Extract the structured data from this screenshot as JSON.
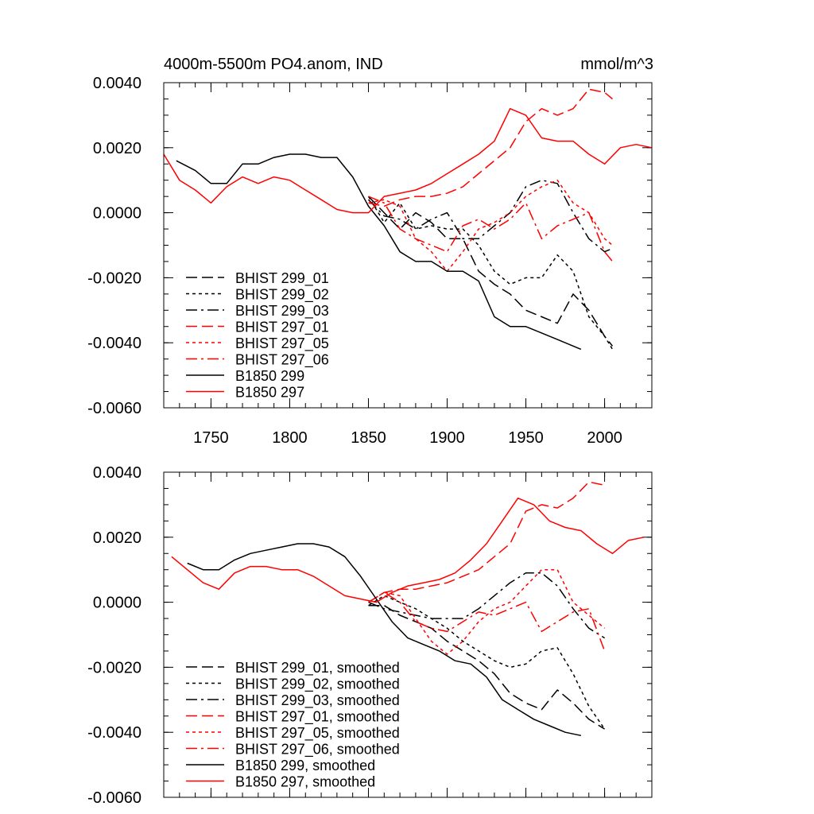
{
  "chart_data": [
    {
      "type": "line",
      "title": "4000m-5500m PO4.anom, IND",
      "units": "mmol/m^3",
      "xlim": [
        1720,
        2030
      ],
      "ylim": [
        -0.006,
        0.004
      ],
      "xticks": [
        1750,
        1800,
        1850,
        1900,
        1950,
        2000
      ],
      "xtick_labels": [
        "1750",
        "1800",
        "1850",
        "1900",
        "1950",
        "2000"
      ],
      "yticks": [
        -0.006,
        -0.004,
        -0.002,
        0.0,
        0.002,
        0.004
      ],
      "ytick_labels": [
        "-0.0060",
        "-0.0040",
        "-0.0020",
        "0.0000",
        "0.0020",
        "0.0040"
      ],
      "legend": [
        "BHIST 299_01",
        "BHIST 299_02",
        "BHIST 299_03",
        "BHIST 297_01",
        "BHIST 297_05",
        "BHIST 297_06",
        "B1850 299",
        "B1850 297"
      ],
      "series": [
        {
          "name": "BHIST 299_01",
          "color": "#000000",
          "dash": "long",
          "x": [
            1850,
            1860,
            1870,
            1880,
            1890,
            1900,
            1910,
            1920,
            1930,
            1940,
            1950,
            1960,
            1970,
            1980,
            1990,
            2000,
            2005
          ],
          "y": [
            0.0005,
            0.0,
            -0.0005,
            0.0,
            -0.0003,
            -0.0008,
            -0.0008,
            -0.0018,
            -0.0022,
            -0.0025,
            -0.003,
            -0.0032,
            -0.0034,
            -0.0025,
            -0.003,
            -0.0038,
            -0.0041
          ]
        },
        {
          "name": "BHIST 299_02",
          "color": "#000000",
          "dash": "short",
          "x": [
            1850,
            1860,
            1870,
            1880,
            1890,
            1900,
            1910,
            1920,
            1930,
            1940,
            1950,
            1960,
            1970,
            1980,
            1990,
            2000,
            2005
          ],
          "y": [
            0.0005,
            -0.0003,
            0.0003,
            -0.0005,
            -0.0004,
            -0.0005,
            -0.0005,
            -0.001,
            -0.0018,
            -0.0022,
            -0.002,
            -0.002,
            -0.0013,
            -0.0018,
            -0.0032,
            -0.0038,
            -0.0042
          ]
        },
        {
          "name": "BHIST 299_03",
          "color": "#000000",
          "dash": "dashdot",
          "x": [
            1850,
            1860,
            1870,
            1880,
            1890,
            1900,
            1910,
            1920,
            1930,
            1940,
            1950,
            1960,
            1970,
            1980,
            1990,
            2000,
            2005
          ],
          "y": [
            0.0004,
            -0.0001,
            -0.0002,
            -0.0005,
            -0.0002,
            0.0,
            -0.0008,
            -0.0008,
            -0.0004,
            0.0,
            0.0008,
            0.001,
            0.0009,
            0.0,
            -0.0008,
            -0.0012,
            -0.0011
          ]
        },
        {
          "name": "BHIST 297_01",
          "color": "#ff0000",
          "dash": "long",
          "x": [
            1850,
            1860,
            1870,
            1880,
            1890,
            1900,
            1910,
            1920,
            1930,
            1940,
            1950,
            1960,
            1970,
            1980,
            1990,
            2000,
            2005
          ],
          "y": [
            0.0003,
            0.0002,
            0.0004,
            0.0005,
            0.0005,
            0.0006,
            0.0008,
            0.0012,
            0.0016,
            0.002,
            0.0028,
            0.0032,
            0.003,
            0.0032,
            0.0038,
            0.0037,
            0.0035
          ]
        },
        {
          "name": "BHIST 297_05",
          "color": "#ff0000",
          "dash": "short",
          "x": [
            1850,
            1860,
            1870,
            1880,
            1890,
            1900,
            1910,
            1920,
            1930,
            1940,
            1950,
            1960,
            1970,
            1980,
            1990,
            2000,
            2005
          ],
          "y": [
            0.0003,
            0.0004,
            0.0002,
            -0.0008,
            -0.0012,
            -0.0018,
            -0.0012,
            -0.0005,
            -0.0003,
            0.0,
            0.0005,
            0.0008,
            0.001,
            0.0003,
            0.0,
            -0.0008,
            -0.001
          ]
        },
        {
          "name": "BHIST 297_06",
          "color": "#ff0000",
          "dash": "dashdot",
          "x": [
            1850,
            1860,
            1870,
            1880,
            1890,
            1900,
            1910,
            1920,
            1930,
            1940,
            1950,
            1960,
            1970,
            1980,
            1990,
            2000,
            2005
          ],
          "y": [
            0.0005,
            0.0003,
            -0.0005,
            -0.0008,
            -0.001,
            -0.0012,
            -0.0004,
            -0.0002,
            -0.0005,
            -0.0002,
            0.0003,
            -0.0008,
            -0.0004,
            -0.0002,
            0.0,
            -0.0012,
            -0.0015
          ]
        },
        {
          "name": "B1850 299",
          "color": "#000000",
          "dash": "solid",
          "x": [
            1728,
            1740,
            1750,
            1760,
            1770,
            1780,
            1790,
            1800,
            1810,
            1820,
            1830,
            1840,
            1850,
            1860,
            1870,
            1880,
            1890,
            1900,
            1910,
            1920,
            1930,
            1940,
            1950,
            1960,
            1970,
            1980,
            1985
          ],
          "y": [
            0.0016,
            0.0013,
            0.0009,
            0.0009,
            0.0015,
            0.0015,
            0.0017,
            0.0018,
            0.0018,
            0.0017,
            0.0017,
            0.0011,
            0.0002,
            -0.0004,
            -0.0012,
            -0.0015,
            -0.0015,
            -0.0018,
            -0.0018,
            -0.0021,
            -0.0032,
            -0.0035,
            -0.0035,
            -0.0037,
            -0.0039,
            -0.0041,
            -0.0042
          ]
        },
        {
          "name": "B1850 297",
          "color": "#ff0000",
          "dash": "solid",
          "x": [
            1720,
            1730,
            1740,
            1750,
            1760,
            1770,
            1780,
            1790,
            1800,
            1810,
            1820,
            1830,
            1840,
            1850,
            1860,
            1870,
            1880,
            1890,
            1900,
            1910,
            1920,
            1930,
            1940,
            1950,
            1960,
            1970,
            1980,
            1990,
            2000,
            2010,
            2020,
            2030
          ],
          "y": [
            0.0018,
            0.001,
            0.0007,
            0.0003,
            0.0008,
            0.0011,
            0.0009,
            0.0011,
            0.001,
            0.0007,
            0.0004,
            0.0001,
            0.0,
            0.0,
            0.0005,
            0.0006,
            0.0007,
            0.0009,
            0.0012,
            0.0015,
            0.0018,
            0.0022,
            0.0032,
            0.003,
            0.0023,
            0.0022,
            0.0022,
            0.0018,
            0.0015,
            0.002,
            0.0021,
            0.002
          ]
        }
      ]
    },
    {
      "type": "line",
      "title": "",
      "xlim": [
        1720,
        2030
      ],
      "ylim": [
        -0.006,
        0.004
      ],
      "yticks": [
        -0.006,
        -0.004,
        -0.002,
        0.0,
        0.002,
        0.004
      ],
      "ytick_labels": [
        "-0.0060",
        "-0.0040",
        "-0.0020",
        "0.0000",
        "0.0020",
        "0.0040"
      ],
      "legend": [
        "BHIST 299_01, smoothed",
        "BHIST 299_02, smoothed",
        "BHIST 299_03, smoothed",
        "BHIST 297_01, smoothed",
        "BHIST 297_05, smoothed",
        "BHIST 297_06, smoothed",
        "B1850 299, smoothed",
        "B1850 297, smoothed"
      ],
      "series": [
        {
          "name": "BHIST 299_01, smoothed",
          "color": "#000000",
          "dash": "long",
          "x": [
            1850,
            1860,
            1870,
            1880,
            1890,
            1900,
            1910,
            1920,
            1930,
            1940,
            1950,
            1960,
            1970,
            1980,
            1990,
            2000
          ],
          "y": [
            -0.0001,
            -0.0001,
            -0.0004,
            -0.0006,
            -0.0008,
            -0.0012,
            -0.0015,
            -0.0018,
            -0.0022,
            -0.0028,
            -0.0031,
            -0.0033,
            -0.0027,
            -0.0031,
            -0.0036,
            -0.0039
          ]
        },
        {
          "name": "BHIST 299_02, smoothed",
          "color": "#000000",
          "dash": "short",
          "x": [
            1850,
            1860,
            1870,
            1880,
            1890,
            1900,
            1910,
            1920,
            1930,
            1940,
            1950,
            1960,
            1970,
            1980,
            1990,
            2000
          ],
          "y": [
            -0.0001,
            0.0002,
            0.0,
            -0.0002,
            -0.0005,
            -0.0008,
            -0.0012,
            -0.0015,
            -0.0018,
            -0.002,
            -0.0019,
            -0.0015,
            -0.0014,
            -0.0022,
            -0.0032,
            -0.0039
          ]
        },
        {
          "name": "BHIST 299_03, smoothed",
          "color": "#000000",
          "dash": "dashdot",
          "x": [
            1850,
            1860,
            1870,
            1880,
            1890,
            1900,
            1910,
            1920,
            1930,
            1940,
            1950,
            1960,
            1970,
            1980,
            1990,
            2000
          ],
          "y": [
            0.0,
            -0.0002,
            -0.0003,
            -0.0004,
            -0.0005,
            -0.0005,
            -0.0005,
            -0.0002,
            0.0002,
            0.0006,
            0.0009,
            0.0009,
            0.0005,
            -0.0002,
            -0.0008,
            -0.0011
          ]
        },
        {
          "name": "BHIST 297_01, smoothed",
          "color": "#ff0000",
          "dash": "long",
          "x": [
            1850,
            1860,
            1870,
            1880,
            1890,
            1900,
            1910,
            1920,
            1930,
            1940,
            1950,
            1960,
            1970,
            1980,
            1990,
            2000
          ],
          "y": [
            0.0,
            0.0003,
            0.0004,
            0.0004,
            0.0005,
            0.0006,
            0.0008,
            0.001,
            0.0014,
            0.0018,
            0.0028,
            0.003,
            0.0029,
            0.0032,
            0.0037,
            0.0036
          ]
        },
        {
          "name": "BHIST 297_05, smoothed",
          "color": "#ff0000",
          "dash": "short",
          "x": [
            1850,
            1860,
            1870,
            1880,
            1890,
            1900,
            1910,
            1920,
            1930,
            1940,
            1950,
            1960,
            1970,
            1980,
            1990,
            2000
          ],
          "y": [
            0.0,
            0.0003,
            0.0002,
            -0.0005,
            -0.0012,
            -0.0016,
            -0.0012,
            -0.0006,
            -0.0002,
            0.0,
            0.0005,
            0.001,
            0.001,
            0.0,
            -0.0004,
            -0.0008
          ]
        },
        {
          "name": "BHIST 297_06, smoothed",
          "color": "#ff0000",
          "dash": "dashdot",
          "x": [
            1850,
            1860,
            1870,
            1880,
            1890,
            1900,
            1910,
            1920,
            1930,
            1940,
            1950,
            1960,
            1970,
            1980,
            1990,
            2000
          ],
          "y": [
            0.0,
            0.0003,
            0.0,
            -0.0006,
            -0.0008,
            -0.0009,
            -0.0006,
            -0.0003,
            -0.0004,
            -0.0002,
            0.0,
            -0.0009,
            -0.0006,
            -0.0003,
            -0.0002,
            -0.0015
          ]
        },
        {
          "name": "B1850 299, smoothed",
          "color": "#000000",
          "dash": "solid",
          "x": [
            1735,
            1745,
            1755,
            1765,
            1775,
            1785,
            1795,
            1805,
            1815,
            1825,
            1835,
            1845,
            1855,
            1865,
            1875,
            1885,
            1895,
            1905,
            1915,
            1925,
            1935,
            1945,
            1955,
            1965,
            1975,
            1985
          ],
          "y": [
            0.0012,
            0.001,
            0.001,
            0.0013,
            0.0015,
            0.0016,
            0.0017,
            0.0018,
            0.0018,
            0.0017,
            0.0014,
            0.0008,
            0.0001,
            -0.0006,
            -0.0011,
            -0.0013,
            -0.0015,
            -0.0018,
            -0.0019,
            -0.0023,
            -0.003,
            -0.0033,
            -0.0036,
            -0.0038,
            -0.004,
            -0.0041
          ]
        },
        {
          "name": "B1850 297, smoothed",
          "color": "#ff0000",
          "dash": "solid",
          "x": [
            1725,
            1735,
            1745,
            1755,
            1765,
            1775,
            1785,
            1795,
            1805,
            1815,
            1825,
            1835,
            1845,
            1855,
            1865,
            1875,
            1885,
            1895,
            1905,
            1915,
            1925,
            1935,
            1945,
            1955,
            1965,
            1975,
            1985,
            1995,
            2005,
            2015,
            2025
          ],
          "y": [
            0.0014,
            0.001,
            0.0006,
            0.0004,
            0.0009,
            0.0011,
            0.0011,
            0.001,
            0.001,
            0.0008,
            0.0005,
            0.0002,
            0.0001,
            0.0,
            0.0003,
            0.0005,
            0.0006,
            0.0007,
            0.0009,
            0.0013,
            0.0018,
            0.0025,
            0.0032,
            0.003,
            0.0025,
            0.0023,
            0.0022,
            0.0018,
            0.0015,
            0.0019,
            0.002
          ]
        }
      ]
    }
  ]
}
